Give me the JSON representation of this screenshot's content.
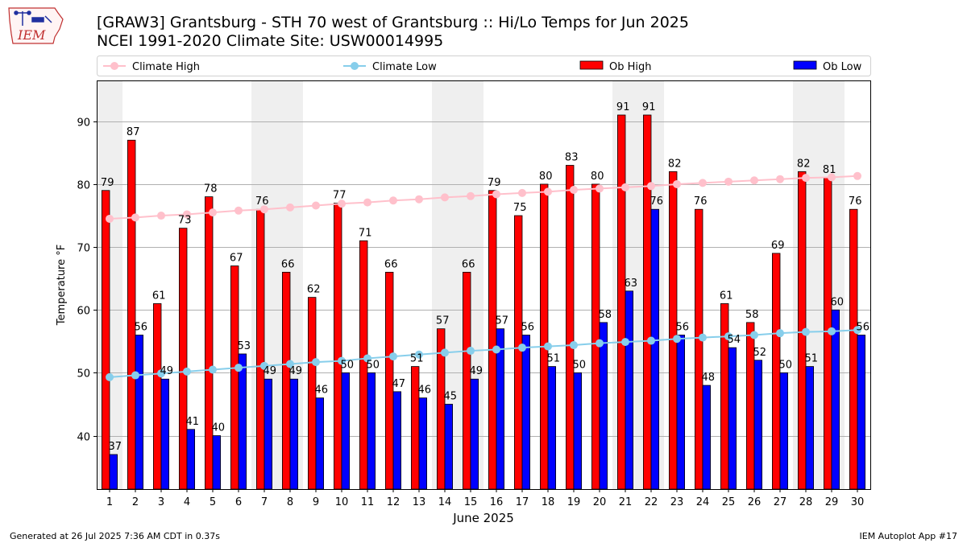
{
  "header": {
    "title_line1": "[GRAW3] Grantsburg - STH 70 west of Grantsburg :: Hi/Lo Temps for Jun 2025",
    "title_line2": "NCEI 1991-2020 Climate Site: USW00014995",
    "logo_text": "IEM"
  },
  "footer": {
    "generated": "Generated at 26 Jul 2025 7:36 AM CDT in 0.37s",
    "app": "IEM Autoplot App #17"
  },
  "chart_data": {
    "type": "bar",
    "xlabel": "June 2025",
    "ylabel": "Temperature °F",
    "ylim": [
      31.5,
      96.5
    ],
    "yticks": [
      40,
      50,
      60,
      70,
      80,
      90
    ],
    "grid": true,
    "legend_position": "top",
    "categories": [
      "1",
      "2",
      "3",
      "4",
      "5",
      "6",
      "7",
      "8",
      "9",
      "10",
      "11",
      "12",
      "13",
      "14",
      "15",
      "16",
      "17",
      "18",
      "19",
      "20",
      "21",
      "22",
      "23",
      "24",
      "25",
      "26",
      "27",
      "28",
      "29",
      "30"
    ],
    "weekend_shading_days": [
      1,
      7,
      8,
      14,
      15,
      21,
      22,
      28,
      29
    ],
    "series": [
      {
        "name": "Climate High",
        "kind": "line",
        "color": "#ffc0cb",
        "values": [
          74.5,
          74.7,
          75.0,
          75.2,
          75.5,
          75.8,
          76.0,
          76.3,
          76.6,
          76.9,
          77.1,
          77.4,
          77.6,
          77.9,
          78.1,
          78.4,
          78.6,
          78.8,
          79.1,
          79.3,
          79.5,
          79.7,
          80.0,
          80.2,
          80.4,
          80.6,
          80.8,
          81.0,
          81.1,
          81.3
        ]
      },
      {
        "name": "Climate Low",
        "kind": "line",
        "color": "#87ceeb",
        "values": [
          49.3,
          49.6,
          49.9,
          50.2,
          50.5,
          50.8,
          51.1,
          51.4,
          51.7,
          51.9,
          52.3,
          52.6,
          52.9,
          53.2,
          53.5,
          53.7,
          54.0,
          54.2,
          54.4,
          54.7,
          54.9,
          55.1,
          55.4,
          55.6,
          55.8,
          56.0,
          56.3,
          56.5,
          56.6,
          56.8
        ]
      },
      {
        "name": "Ob High",
        "kind": "bar",
        "color": "#ff0000",
        "values": [
          79,
          87,
          61,
          73,
          78,
          67,
          76,
          66,
          62,
          77,
          71,
          66,
          51,
          57,
          66,
          79,
          75,
          80,
          83,
          80,
          91,
          91,
          82,
          76,
          61,
          58,
          69,
          82,
          81,
          76
        ]
      },
      {
        "name": "Ob Low",
        "kind": "bar",
        "color": "#0000ff",
        "values": [
          37,
          56,
          49,
          41,
          40,
          53,
          49,
          49,
          46,
          50,
          50,
          47,
          46,
          45,
          49,
          57,
          56,
          51,
          50,
          58,
          63,
          76,
          56,
          48,
          54,
          52,
          50,
          51,
          60,
          56
        ]
      }
    ]
  }
}
